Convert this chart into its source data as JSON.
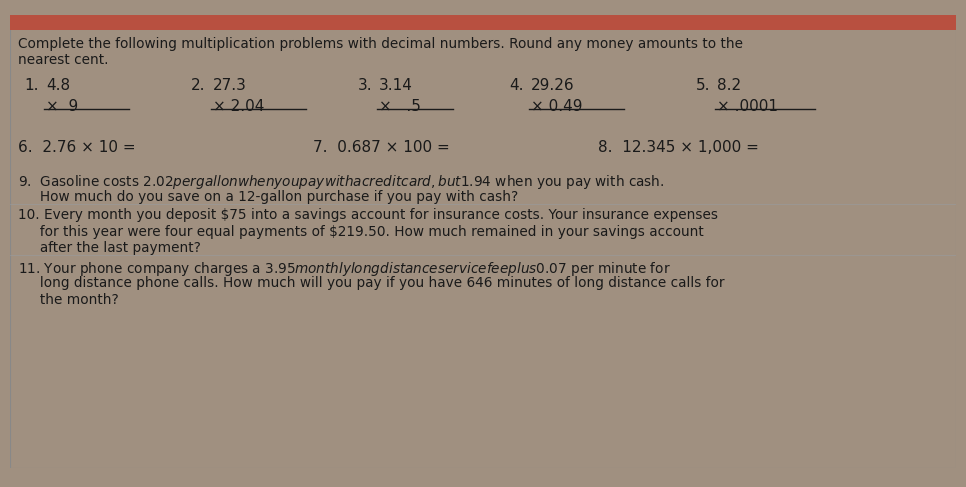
{
  "outer_bg": "#a09080",
  "panel_color": "#c8bfb0",
  "top_bar_color": "#b85040",
  "text_color": "#1a1a1a",
  "header_line1": "Complete the following multiplication problems with decimal numbers. Round any money amounts to the",
  "header_line2": "nearest cent.",
  "prob1_num": "1.",
  "prob1_top": "4.8",
  "prob1_mult": "×  9",
  "prob2_num": "2.",
  "prob2_top": "27.3",
  "prob2_mult": "× 2.04",
  "prob3_num": "3.",
  "prob3_top": "3.14",
  "prob3_mult": "×   .5",
  "prob4_num": "4.",
  "prob4_top": "29.26",
  "prob4_mult": "× 0.49",
  "prob5_num": "5.",
  "prob5_top": "8.2",
  "prob5_mult": "× .0001",
  "inline6": "6.  2.76 × 10 =",
  "inline7": "7.  0.687 × 100 =",
  "inline8": "8.  12.345 × 1,000 =",
  "wp9_line1": "9.  Gasoline costs $2.02 per gallon when you pay with a credit card, but $1.94 when you pay with cash.",
  "wp9_line2": "     How much do you save on a 12-gallon purchase if you pay with cash?",
  "wp10_line1": "10. Every month you deposit $75 into a savings account for insurance costs. Your insurance expenses",
  "wp10_line2": "     for this year were four equal payments of $219.50. How much remained in your savings account",
  "wp10_line3": "     after the last payment?",
  "wp11_line1": "11. Your phone company charges a $3.95 monthly long distance service fee plus $0.07 per minute for",
  "wp11_line2": "     long distance phone calls. How much will you pay if you have 646 minutes of long distance calls for",
  "wp11_line3": "     the month?"
}
